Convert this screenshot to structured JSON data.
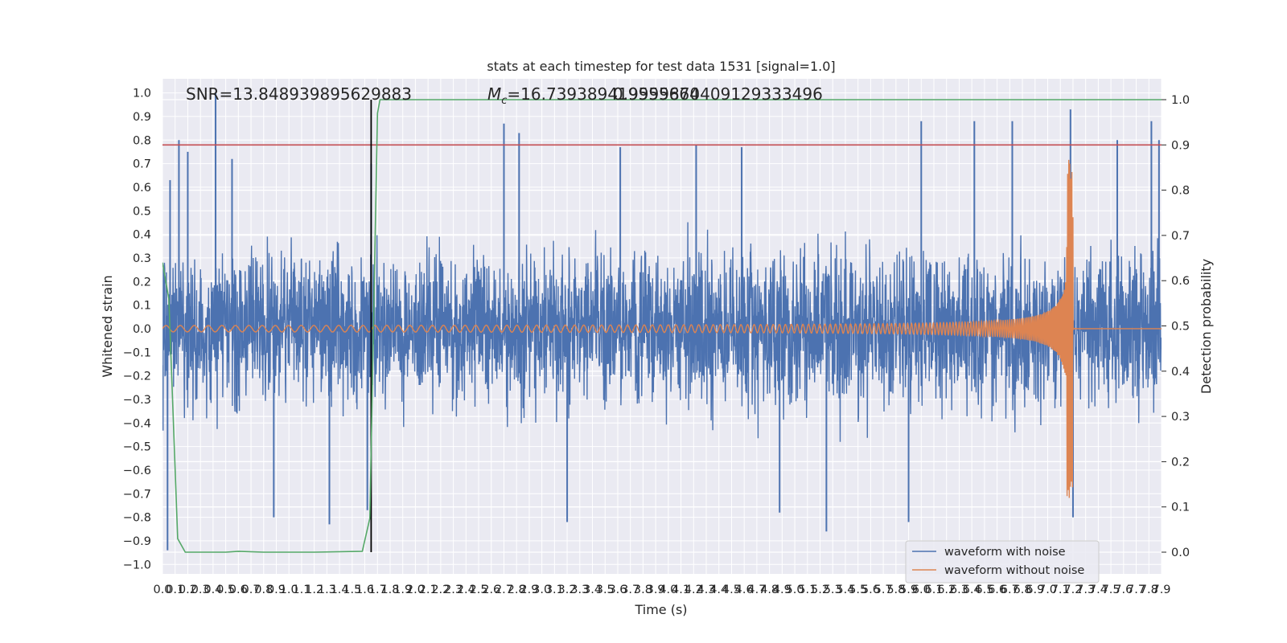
{
  "chart_data": {
    "type": "line",
    "title": "stats at each timestep for test data 1531 [signal=1.0]",
    "xlabel": "Time (s)",
    "ylabel_left": "Whitened strain",
    "ylabel_right": "Detection probability",
    "xlim": [
      0,
      7.9
    ],
    "ylim_left": [
      -1.04,
      1.06
    ],
    "ylim_right": [
      0.0,
      1.0
    ],
    "x_ticks": [
      "0.0",
      "0.1",
      "0.2",
      "0.3",
      "0.4",
      "0.5",
      "0.6",
      "0.7",
      "0.8",
      "0.9",
      "1.0",
      "1.1",
      "1.2",
      "1.3",
      "1.4",
      "1.5",
      "1.6",
      "1.7",
      "1.8",
      "1.9",
      "2.0",
      "2.1",
      "2.2",
      "2.3",
      "2.4",
      "2.5",
      "2.6",
      "2.7",
      "2.8",
      "2.9",
      "3.0",
      "3.1",
      "3.2",
      "3.3",
      "3.4",
      "3.5",
      "3.6",
      "3.7",
      "3.8",
      "3.9",
      "4.0",
      "4.1",
      "4.2",
      "4.3",
      "4.4",
      "4.5",
      "4.6",
      "4.7",
      "4.8",
      "4.9",
      "5.0",
      "5.1",
      "5.2",
      "5.3",
      "5.4",
      "5.5",
      "5.6",
      "5.7",
      "5.8",
      "5.9",
      "6.0",
      "6.1",
      "6.2",
      "6.3",
      "6.4",
      "6.5",
      "6.6",
      "6.7",
      "6.8",
      "6.9",
      "7.0",
      "7.1",
      "7.2",
      "7.3",
      "7.4",
      "7.5",
      "7.6",
      "7.7",
      "7.8",
      "7.9"
    ],
    "y_ticks_left": [
      "-1.0",
      "-0.9",
      "-0.8",
      "-0.7",
      "-0.6",
      "-0.5",
      "-0.4",
      "-0.3",
      "-0.2",
      "-0.1",
      "0.0",
      "0.1",
      "0.2",
      "0.3",
      "0.4",
      "0.5",
      "0.6",
      "0.7",
      "0.8",
      "0.9",
      "1.0"
    ],
    "y_ticks_right": [
      "0.0",
      "0.1",
      "0.2",
      "0.3",
      "0.4",
      "0.5",
      "0.6",
      "0.7",
      "0.8",
      "0.9",
      "1.0"
    ],
    "annotations": {
      "snr": "SNR=13.848939895629883",
      "mc_prefix": "M",
      "mc_sub": "c",
      "mc_value": "=16.739389419555664",
      "extra_value": "0.9999870409129333496"
    },
    "threshold_right": 0.9,
    "marker_time": 1.65,
    "series": [
      {
        "name": "waveform with noise",
        "color": "#4c72b0",
        "noise_amplitude": 0.35,
        "spikes": [
          [
            0.04,
            -0.94
          ],
          [
            0.06,
            0.63
          ],
          [
            0.13,
            0.8
          ],
          [
            0.2,
            0.75
          ],
          [
            0.42,
            1.0
          ],
          [
            0.55,
            0.72
          ],
          [
            0.88,
            -0.8
          ],
          [
            1.32,
            -0.83
          ],
          [
            1.62,
            -0.77
          ],
          [
            1.65,
            0.7
          ],
          [
            2.7,
            0.87
          ],
          [
            2.82,
            0.83
          ],
          [
            3.2,
            -0.82
          ],
          [
            3.62,
            0.77
          ],
          [
            4.22,
            0.78
          ],
          [
            4.58,
            0.77
          ],
          [
            4.88,
            -0.78
          ],
          [
            5.25,
            -0.86
          ],
          [
            5.9,
            -0.82
          ],
          [
            6.0,
            0.88
          ],
          [
            6.42,
            0.88
          ],
          [
            6.72,
            0.88
          ],
          [
            7.18,
            0.93
          ],
          [
            7.2,
            -0.8
          ],
          [
            7.55,
            0.8
          ],
          [
            7.82,
            0.88
          ],
          [
            7.88,
            0.8
          ]
        ]
      },
      {
        "name": "waveform without noise",
        "color": "#dd8452",
        "merger_time": 7.2,
        "peak_amplitude": 0.72
      },
      {
        "name": "",
        "color": "#55a868",
        "axis": "right",
        "points": [
          [
            0.0,
            0.64
          ],
          [
            0.05,
            0.56
          ],
          [
            0.12,
            0.03
          ],
          [
            0.18,
            0.0
          ],
          [
            0.3,
            0.0
          ],
          [
            0.5,
            0.0
          ],
          [
            0.6,
            0.002
          ],
          [
            0.8,
            0.0
          ],
          [
            1.2,
            0.0
          ],
          [
            1.58,
            0.002
          ],
          [
            1.64,
            0.075
          ],
          [
            1.7,
            0.97
          ],
          [
            1.72,
            1.0
          ],
          [
            7.9,
            1.0
          ]
        ]
      }
    ],
    "legend": {
      "location": "lower right"
    }
  }
}
